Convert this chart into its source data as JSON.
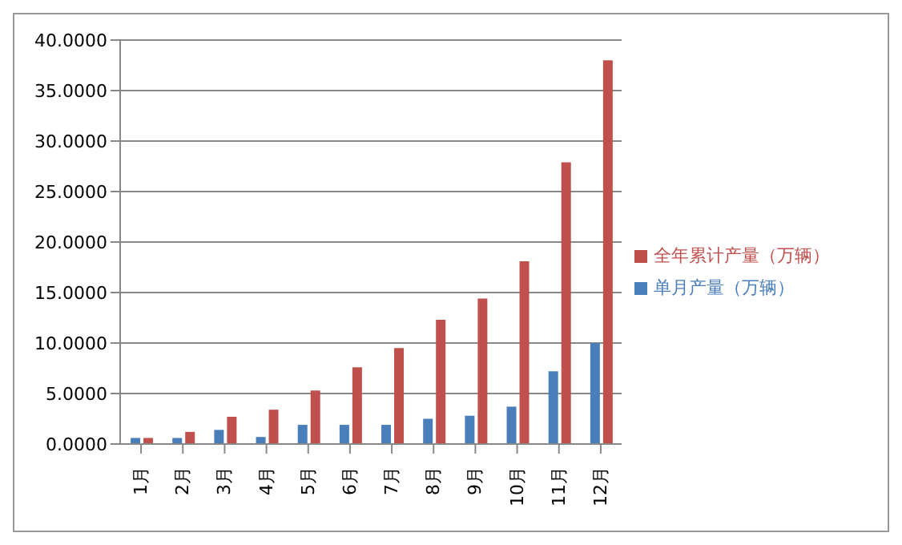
{
  "chart_data": {
    "type": "bar",
    "categories": [
      "1月",
      "2月",
      "3月",
      "4月",
      "5月",
      "6月",
      "7月",
      "8月",
      "9月",
      "10月",
      "11月",
      "12月"
    ],
    "series": [
      {
        "name": "单月产量（万辆）",
        "color": "#4a7ebb",
        "values": [
          0.6,
          0.6,
          1.4,
          0.7,
          1.9,
          1.9,
          1.9,
          2.5,
          2.8,
          3.7,
          7.2,
          10.0
        ]
      },
      {
        "name": "全年累计产量（万辆）",
        "color": "#c0504d",
        "values": [
          0.6,
          1.2,
          2.7,
          3.4,
          5.3,
          7.6,
          9.5,
          12.3,
          14.4,
          18.1,
          27.9,
          38.0
        ]
      }
    ],
    "ylim": [
      0,
      40
    ],
    "yticks": [
      {
        "value": 0,
        "label": "0.0000"
      },
      {
        "value": 5,
        "label": "5.0000"
      },
      {
        "value": 10,
        "label": "10.0000"
      },
      {
        "value": 15,
        "label": "15.0000"
      },
      {
        "value": 20,
        "label": "20.0000"
      },
      {
        "value": 25,
        "label": "25.0000"
      },
      {
        "value": 30,
        "label": "30.0000"
      },
      {
        "value": 35,
        "label": "35.0000"
      },
      {
        "value": 40,
        "label": "40.0000"
      }
    ],
    "grid": "y",
    "legend": "right"
  }
}
